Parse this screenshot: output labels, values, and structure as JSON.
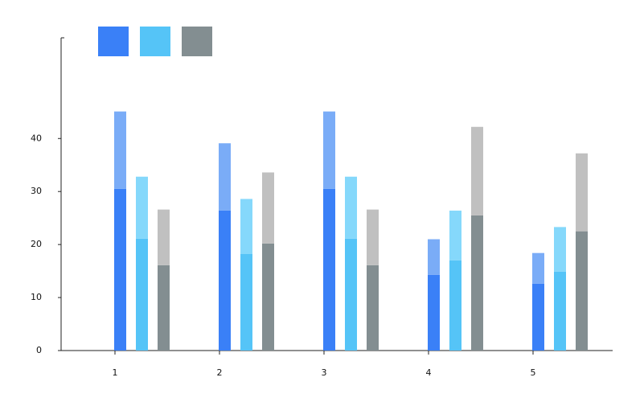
{
  "chart_data": {
    "type": "stacked-grouped-bar",
    "categories": [
      "1",
      "2",
      "3",
      "4",
      "5"
    ],
    "series": [
      {
        "stack": 0,
        "color": "#3a80f7",
        "values": [
          30.5,
          26.4,
          30.5,
          14.3,
          12.6
        ]
      },
      {
        "stack": 0,
        "color": "#7aacf7",
        "values": [
          14.6,
          12.7,
          14.6,
          6.7,
          5.8
        ]
      },
      {
        "stack": 1,
        "color": "#55c4f7",
        "values": [
          21.1,
          18.2,
          21.1,
          17.0,
          14.9
        ]
      },
      {
        "stack": 1,
        "color": "#85d8fb",
        "values": [
          11.7,
          10.4,
          11.7,
          9.4,
          8.4
        ]
      },
      {
        "stack": 2,
        "color": "#838e91",
        "values": [
          16.1,
          20.2,
          16.1,
          25.5,
          22.5
        ]
      },
      {
        "stack": 2,
        "color": "#c0c0c0",
        "values": [
          10.5,
          13.4,
          10.5,
          16.7,
          14.7
        ]
      }
    ],
    "legend_colors": [
      "#3a80f7",
      "#55c4f7",
      "#838e91"
    ],
    "ylim": [
      0,
      59
    ],
    "yticks": [
      0,
      10,
      20,
      30,
      40
    ],
    "grid": false
  }
}
